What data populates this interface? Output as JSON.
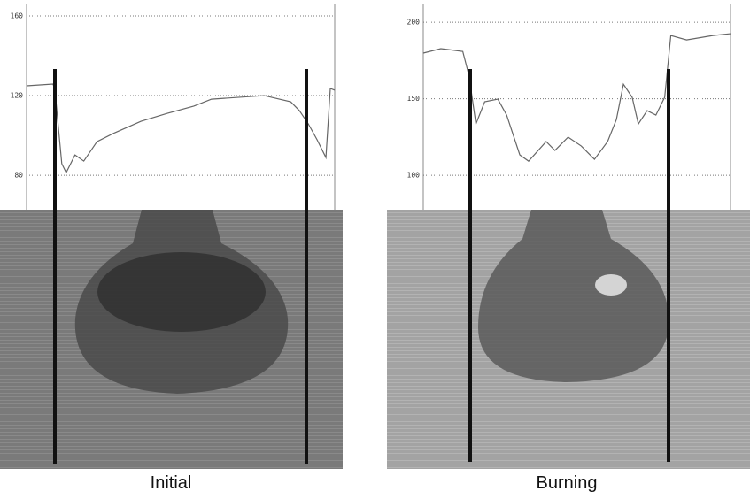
{
  "chart_data": [
    {
      "type": "line",
      "caption": "Initial",
      "color": "#666666",
      "x": [
        0,
        30,
        32,
        40,
        45,
        55,
        65,
        80,
        100,
        130,
        160,
        190,
        210,
        240,
        270,
        300,
        310,
        320,
        330,
        340,
        345,
        350
      ],
      "values": [
        124.9,
        125.8,
        123.6,
        85.8,
        81.3,
        90.2,
        87.1,
        96.9,
        101.3,
        107.1,
        111.1,
        114.7,
        118.2,
        119.1,
        120,
        116.9,
        112.4,
        105.8,
        97.8,
        88.9,
        123.6,
        122.7
      ],
      "xlim": [
        0,
        350
      ],
      "ylim": [
        62.7,
        165.8
      ],
      "yticks": [
        160,
        120,
        80
      ],
      "grid": true
    },
    {
      "type": "line",
      "caption": "Burning",
      "color": "#666666",
      "x": [
        0,
        20,
        45,
        52,
        60,
        70,
        85,
        95,
        110,
        120,
        140,
        150,
        165,
        180,
        195,
        210,
        220,
        228,
        238,
        245,
        255,
        265,
        275,
        282,
        300,
        330,
        350
      ],
      "values": [
        179.8,
        182.7,
        180.9,
        165.3,
        133.5,
        148,
        149.7,
        139.3,
        113.3,
        109.2,
        122,
        116.2,
        124.9,
        119.1,
        110.4,
        122,
        136.4,
        159.5,
        150.9,
        133.5,
        142.2,
        139.3,
        150.9,
        191.3,
        188.4,
        191.3,
        192.5
      ],
      "xlim": [
        0,
        350
      ],
      "ylim": [
        77.5,
        211.6
      ],
      "yticks": [
        200,
        150,
        100
      ],
      "grid": true
    }
  ]
}
